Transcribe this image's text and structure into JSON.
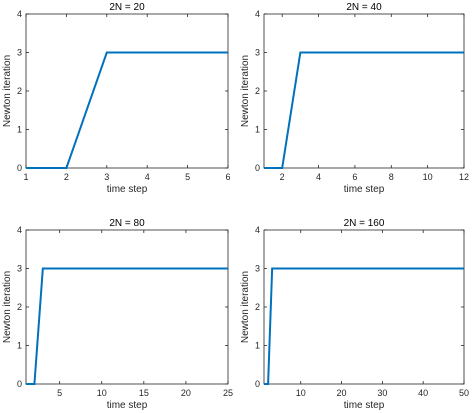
{
  "chart_data": [
    {
      "type": "line",
      "title": "2N = 20",
      "xlabel": "time step",
      "ylabel": "Newton iteration",
      "xlim": [
        1,
        6
      ],
      "ylim": [
        0,
        4
      ],
      "xticks": [
        1,
        2,
        3,
        4,
        5,
        6
      ],
      "yticks": [
        0,
        1,
        2,
        3,
        4
      ],
      "grid": false,
      "color": "#0072BD",
      "series": [
        {
          "x": [
            1,
            2,
            3,
            6
          ],
          "y": [
            0,
            0,
            3,
            3
          ]
        }
      ]
    },
    {
      "type": "line",
      "title": "2N = 40",
      "xlabel": "time step",
      "ylabel": "Newton iteration",
      "xlim": [
        1,
        12
      ],
      "ylim": [
        0,
        4
      ],
      "xticks": [
        2,
        4,
        6,
        8,
        10,
        12
      ],
      "yticks": [
        0,
        1,
        2,
        3,
        4
      ],
      "grid": false,
      "color": "#0072BD",
      "series": [
        {
          "x": [
            1,
            2,
            3,
            12
          ],
          "y": [
            0,
            0,
            3,
            3
          ]
        }
      ]
    },
    {
      "type": "line",
      "title": "2N = 80",
      "xlabel": "time step",
      "ylabel": "Newton iteration",
      "xlim": [
        1,
        25
      ],
      "ylim": [
        0,
        4
      ],
      "xticks": [
        5,
        10,
        15,
        20,
        25
      ],
      "yticks": [
        0,
        1,
        2,
        3,
        4
      ],
      "grid": false,
      "color": "#0072BD",
      "series": [
        {
          "x": [
            1,
            2,
            3,
            25
          ],
          "y": [
            0,
            0,
            3,
            3
          ]
        }
      ]
    },
    {
      "type": "line",
      "title": "2N = 160",
      "xlabel": "time step",
      "ylabel": "Newton iteration",
      "xlim": [
        1,
        50
      ],
      "ylim": [
        0,
        4
      ],
      "xticks": [
        10,
        20,
        30,
        40,
        50
      ],
      "yticks": [
        0,
        1,
        2,
        3,
        4
      ],
      "grid": false,
      "color": "#0072BD",
      "series": [
        {
          "x": [
            1,
            2,
            3,
            50
          ],
          "y": [
            0,
            0,
            3,
            3
          ]
        }
      ]
    }
  ]
}
